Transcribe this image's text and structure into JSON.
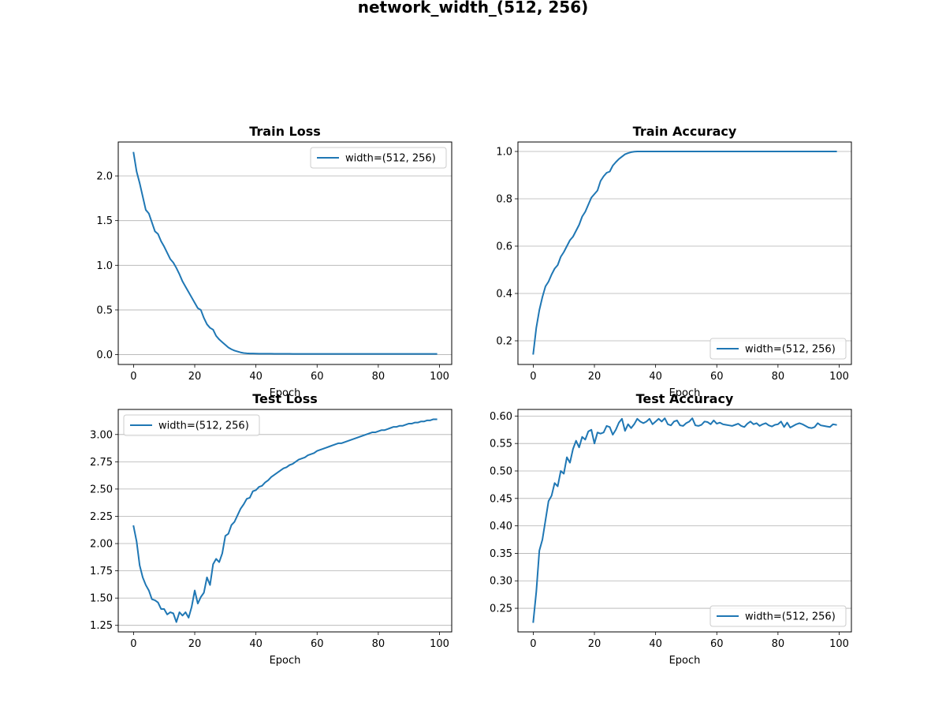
{
  "figure": {
    "title": "network_width_(512, 256)",
    "line_color": "#1f77b4"
  },
  "chart_data": [
    {
      "id": "train_loss",
      "type": "line",
      "title": "Train Loss",
      "xlabel": "Epoch",
      "ylabel": "",
      "xlim": [
        -5,
        104
      ],
      "ylim": [
        -0.11,
        2.38
      ],
      "xticks": [
        0,
        20,
        40,
        60,
        80,
        100
      ],
      "yticks": [
        0.0,
        0.5,
        1.0,
        1.5,
        2.0
      ],
      "ytick_labels": [
        "0.0",
        "0.5",
        "1.0",
        "1.5",
        "2.0"
      ],
      "grid": "y",
      "legend_loc": "upper right",
      "series": [
        {
          "name": "width=(512, 256)",
          "x_start": 0,
          "x_step": 1,
          "values": [
            2.26,
            2.05,
            1.92,
            1.77,
            1.62,
            1.58,
            1.48,
            1.38,
            1.35,
            1.27,
            1.21,
            1.14,
            1.07,
            1.03,
            0.97,
            0.9,
            0.82,
            0.76,
            0.7,
            0.64,
            0.58,
            0.52,
            0.5,
            0.41,
            0.34,
            0.3,
            0.28,
            0.21,
            0.17,
            0.14,
            0.11,
            0.08,
            0.06,
            0.045,
            0.035,
            0.025,
            0.018,
            0.015,
            0.013,
            0.012,
            0.011,
            0.01,
            0.01,
            0.01,
            0.01,
            0.01,
            0.009,
            0.009,
            0.009,
            0.009,
            0.009,
            0.009,
            0.008,
            0.008,
            0.008,
            0.008,
            0.008,
            0.008,
            0.008,
            0.008,
            0.008,
            0.008,
            0.008,
            0.008,
            0.008,
            0.008,
            0.008,
            0.008,
            0.008,
            0.008,
            0.008,
            0.008,
            0.008,
            0.008,
            0.008,
            0.008,
            0.008,
            0.008,
            0.008,
            0.008,
            0.008,
            0.008,
            0.008,
            0.008,
            0.008,
            0.008,
            0.008,
            0.008,
            0.008,
            0.008,
            0.008,
            0.008,
            0.008,
            0.008,
            0.008,
            0.008,
            0.008,
            0.008,
            0.008,
            0.008
          ]
        }
      ]
    },
    {
      "id": "train_acc",
      "type": "line",
      "title": "Train Accuracy",
      "xlabel": "Epoch",
      "ylabel": "",
      "xlim": [
        -5,
        104
      ],
      "ylim": [
        0.1,
        1.04
      ],
      "xticks": [
        0,
        20,
        40,
        60,
        80,
        100
      ],
      "yticks": [
        0.2,
        0.4,
        0.6,
        0.8,
        1.0
      ],
      "ytick_labels": [
        "0.2",
        "0.4",
        "0.6",
        "0.8",
        "1.0"
      ],
      "grid": "y",
      "legend_loc": "lower right",
      "series": [
        {
          "name": "width=(512, 256)",
          "x_start": 0,
          "x_step": 1,
          "values": [
            0.145,
            0.255,
            0.33,
            0.385,
            0.43,
            0.45,
            0.48,
            0.505,
            0.52,
            0.555,
            0.575,
            0.6,
            0.625,
            0.64,
            0.665,
            0.69,
            0.725,
            0.745,
            0.775,
            0.805,
            0.82,
            0.835,
            0.875,
            0.895,
            0.91,
            0.915,
            0.94,
            0.955,
            0.968,
            0.978,
            0.988,
            0.993,
            0.997,
            0.999,
            1.0,
            1.0,
            1.0,
            1.0,
            1.0,
            1.0,
            1.0,
            1.0,
            1.0,
            1.0,
            1.0,
            1.0,
            1.0,
            1.0,
            1.0,
            1.0,
            1.0,
            1.0,
            1.0,
            1.0,
            1.0,
            1.0,
            1.0,
            1.0,
            1.0,
            1.0,
            1.0,
            1.0,
            1.0,
            1.0,
            1.0,
            1.0,
            1.0,
            1.0,
            1.0,
            1.0,
            1.0,
            1.0,
            1.0,
            1.0,
            1.0,
            1.0,
            1.0,
            1.0,
            1.0,
            1.0,
            1.0,
            1.0,
            1.0,
            1.0,
            1.0,
            1.0,
            1.0,
            1.0,
            1.0,
            1.0,
            1.0,
            1.0,
            1.0,
            1.0,
            1.0,
            1.0,
            1.0,
            1.0,
            1.0,
            1.0
          ]
        }
      ]
    },
    {
      "id": "test_loss",
      "type": "line",
      "title": "Test Loss",
      "xlabel": "Epoch",
      "ylabel": "",
      "xlim": [
        -5,
        104
      ],
      "ylim": [
        1.19,
        3.23
      ],
      "xticks": [
        0,
        20,
        40,
        60,
        80,
        100
      ],
      "yticks": [
        1.25,
        1.5,
        1.75,
        2.0,
        2.25,
        2.5,
        2.75,
        3.0
      ],
      "ytick_labels": [
        "1.25",
        "1.50",
        "1.75",
        "2.00",
        "2.25",
        "2.50",
        "2.75",
        "3.00"
      ],
      "grid": "y",
      "legend_loc": "upper left",
      "series": [
        {
          "name": "width=(512, 256)",
          "x_start": 0,
          "x_step": 1,
          "values": [
            2.16,
            2.02,
            1.8,
            1.69,
            1.62,
            1.57,
            1.49,
            1.48,
            1.46,
            1.4,
            1.4,
            1.35,
            1.37,
            1.36,
            1.28,
            1.37,
            1.34,
            1.37,
            1.32,
            1.42,
            1.57,
            1.45,
            1.51,
            1.55,
            1.69,
            1.62,
            1.81,
            1.86,
            1.83,
            1.91,
            2.07,
            2.09,
            2.17,
            2.2,
            2.26,
            2.32,
            2.36,
            2.41,
            2.42,
            2.48,
            2.49,
            2.52,
            2.53,
            2.56,
            2.58,
            2.61,
            2.63,
            2.65,
            2.67,
            2.69,
            2.7,
            2.72,
            2.73,
            2.75,
            2.77,
            2.78,
            2.79,
            2.81,
            2.82,
            2.83,
            2.85,
            2.86,
            2.87,
            2.88,
            2.89,
            2.9,
            2.91,
            2.92,
            2.92,
            2.93,
            2.94,
            2.95,
            2.96,
            2.97,
            2.98,
            2.99,
            3.0,
            3.01,
            3.02,
            3.02,
            3.03,
            3.04,
            3.04,
            3.05,
            3.06,
            3.07,
            3.07,
            3.08,
            3.08,
            3.09,
            3.1,
            3.1,
            3.11,
            3.11,
            3.12,
            3.12,
            3.13,
            3.13,
            3.14,
            3.14
          ]
        }
      ]
    },
    {
      "id": "test_acc",
      "type": "line",
      "title": "Test Accuracy",
      "xlabel": "Epoch",
      "ylabel": "",
      "xlim": [
        -5,
        104
      ],
      "ylim": [
        0.207,
        0.612
      ],
      "xticks": [
        0,
        20,
        40,
        60,
        80,
        100
      ],
      "yticks": [
        0.25,
        0.3,
        0.35,
        0.4,
        0.45,
        0.5,
        0.55,
        0.6
      ],
      "ytick_labels": [
        "0.25",
        "0.30",
        "0.35",
        "0.40",
        "0.45",
        "0.50",
        "0.55",
        "0.60"
      ],
      "grid": "y",
      "legend_loc": "lower right",
      "series": [
        {
          "name": "width=(512, 256)",
          "x_start": 0,
          "x_step": 1,
          "values": [
            0.225,
            0.28,
            0.355,
            0.375,
            0.41,
            0.445,
            0.455,
            0.478,
            0.472,
            0.5,
            0.495,
            0.525,
            0.515,
            0.54,
            0.555,
            0.543,
            0.562,
            0.557,
            0.572,
            0.575,
            0.55,
            0.57,
            0.568,
            0.57,
            0.582,
            0.58,
            0.566,
            0.575,
            0.588,
            0.595,
            0.573,
            0.585,
            0.578,
            0.585,
            0.595,
            0.59,
            0.587,
            0.59,
            0.595,
            0.585,
            0.59,
            0.595,
            0.59,
            0.596,
            0.585,
            0.583,
            0.59,
            0.592,
            0.583,
            0.582,
            0.587,
            0.59,
            0.596,
            0.583,
            0.582,
            0.584,
            0.59,
            0.589,
            0.585,
            0.592,
            0.586,
            0.588,
            0.585,
            0.584,
            0.583,
            0.582,
            0.584,
            0.586,
            0.582,
            0.58,
            0.586,
            0.59,
            0.585,
            0.587,
            0.582,
            0.585,
            0.587,
            0.583,
            0.581,
            0.584,
            0.585,
            0.59,
            0.58,
            0.588,
            0.579,
            0.582,
            0.585,
            0.587,
            0.585,
            0.582,
            0.579,
            0.578,
            0.58,
            0.587,
            0.583,
            0.582,
            0.581,
            0.58,
            0.585,
            0.584
          ]
        }
      ]
    }
  ]
}
